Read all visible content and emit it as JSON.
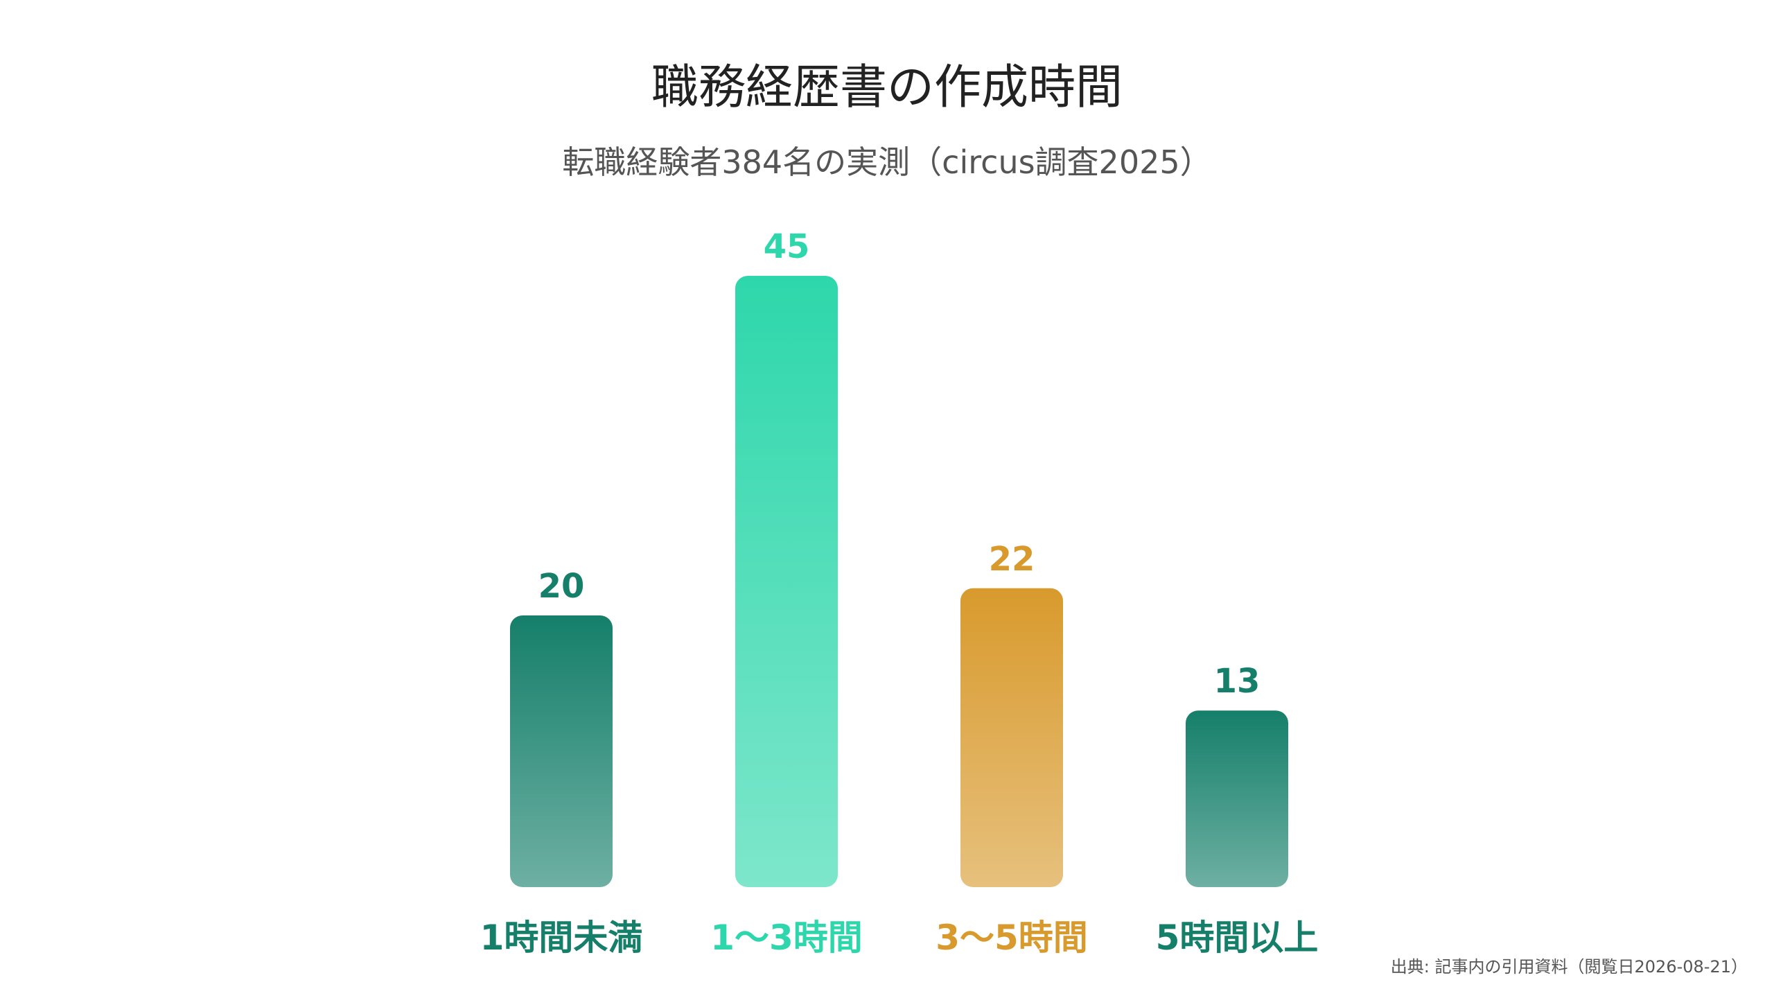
{
  "title": "職務経歴書の作成時間",
  "subtitle": "転職経験者384名の実測（circus調査2025）",
  "source": "出典: 記事内の引用資料（閲覧日2026-08-21）",
  "colors": {
    "dark_green": "#157f6a",
    "light_green": "#2ed7ab",
    "gold": "#d89a2d"
  },
  "chart_data": {
    "type": "bar",
    "categories": [
      "1時間未満",
      "1〜3時間",
      "3〜5時間",
      "5時間以上"
    ],
    "values": [
      20,
      45,
      22,
      13
    ],
    "value_labels": [
      "20",
      "45",
      "22",
      "13"
    ],
    "bar_colors": [
      "#157f6a",
      "#2ed7ab",
      "#d89a2d",
      "#157f6a"
    ],
    "ylim": [
      0,
      45
    ],
    "grid": false,
    "legend": "none"
  }
}
